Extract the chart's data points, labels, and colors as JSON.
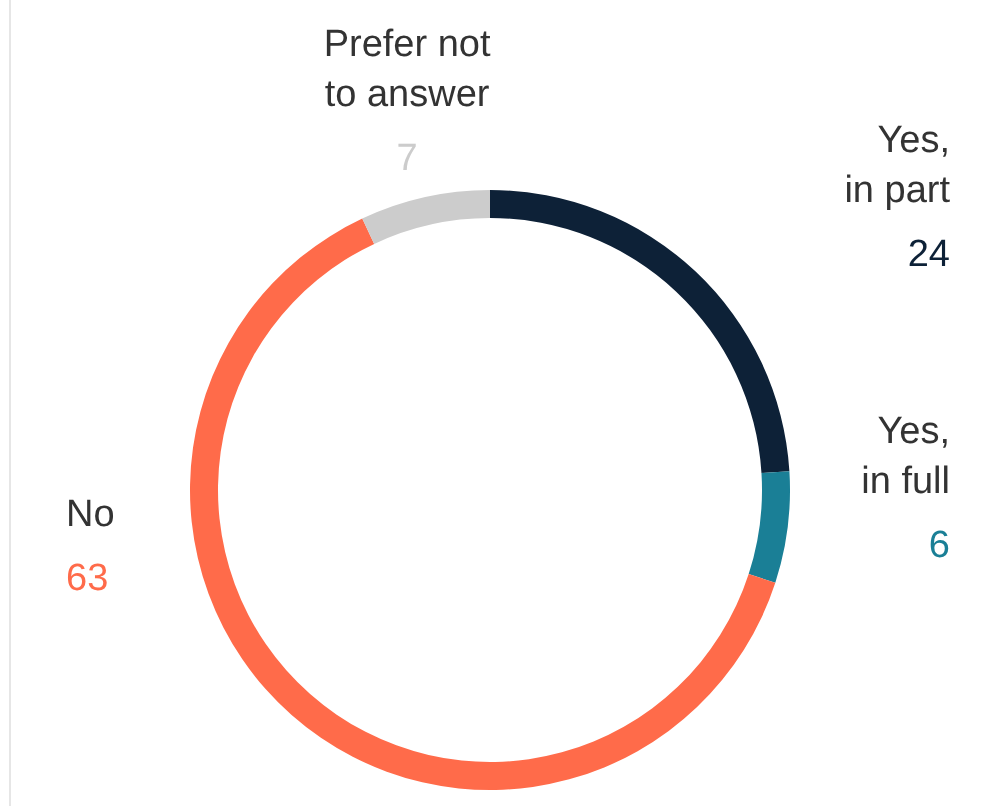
{
  "chart_data": {
    "type": "donut",
    "categories": [
      "Yes,\nin part",
      "Yes,\nin full",
      "No",
      "Prefer not\nto answer"
    ],
    "values": [
      24,
      6,
      63,
      7
    ],
    "colors": [
      "#0d2137",
      "#1a7f96",
      "#ff6b4a",
      "#cccccc"
    ],
    "data_labels": true
  }
}
